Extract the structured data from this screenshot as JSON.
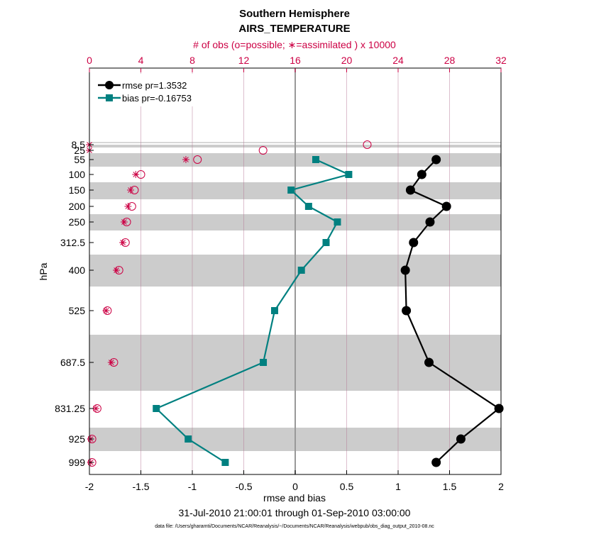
{
  "chart_data": {
    "type": "line",
    "title": "Southern Hemisphere",
    "subtitle": "AIRS_TEMPERATURE",
    "top_axis_label": "# of obs (o=possible; ∗=assimilated ) x 10000",
    "xlabel": "rmse and bias",
    "ylabel": "hPa",
    "date_range": "31-Jul-2010 21:00:01 through 01-Sep-2010 03:00:00",
    "footnote": "data file: /Users/gharamti/Documents/NCAR/Reanalysis/~/Documents/NCAR/Reanalysis/webpub/obs_diag_output_2010-08.nc",
    "xlim": [
      -2,
      2
    ],
    "x_ticks": [
      "-2",
      "-1.5",
      "-1",
      "-0.5",
      "0",
      "0.5",
      "1",
      "1.5",
      "2"
    ],
    "top_xlim": [
      0,
      32
    ],
    "top_ticks": [
      "0",
      "4",
      "8",
      "12",
      "16",
      "20",
      "24",
      "28",
      "32"
    ],
    "levels": [
      8.5,
      25,
      55,
      100,
      150,
      200,
      250,
      312.5,
      400,
      525,
      687.5,
      831.25,
      925,
      999
    ],
    "level_labels": [
      "8.5",
      "25",
      "55",
      "100",
      "150",
      "200",
      "250",
      "312.5",
      "400",
      "525",
      "687.5",
      "831.25",
      "925",
      "999"
    ],
    "series": [
      {
        "name": "rmse",
        "legend": "rmse pr=1.3532",
        "color": "#000000",
        "levels": [
          55,
          100,
          150,
          200,
          250,
          312.5,
          400,
          525,
          687.5,
          831.25,
          925,
          999
        ],
        "values": [
          1.37,
          1.23,
          1.12,
          1.47,
          1.31,
          1.15,
          1.07,
          1.08,
          1.3,
          1.98,
          1.61,
          1.37
        ]
      },
      {
        "name": "bias",
        "legend": "bias pr=-0.16753",
        "color": "#008080",
        "levels": [
          55,
          100,
          150,
          200,
          250,
          312.5,
          400,
          525,
          687.5,
          831.25,
          925,
          999
        ],
        "values": [
          0.2,
          0.52,
          -0.04,
          0.13,
          0.41,
          0.3,
          0.06,
          -0.2,
          -0.31,
          -1.35,
          -1.04,
          -0.68
        ]
      }
    ],
    "obs_possible": {
      "levels": [
        8.5,
        25,
        55,
        100,
        150,
        200,
        250,
        312.5,
        400,
        525,
        687.5,
        831.25,
        925,
        999
      ],
      "values": [
        21.6,
        13.5,
        8.4,
        4.0,
        3.5,
        3.3,
        2.9,
        2.8,
        2.3,
        1.4,
        1.9,
        0.6,
        0.2,
        0.2
      ]
    },
    "obs_assimilated": {
      "levels": [
        8.5,
        25,
        55,
        100,
        150,
        200,
        250,
        312.5,
        400,
        525,
        687.5,
        831.25,
        925,
        999
      ],
      "values": [
        0.0,
        0.0,
        7.5,
        3.6,
        3.2,
        3.0,
        2.7,
        2.6,
        2.1,
        1.3,
        1.7,
        0.5,
        0.1,
        0.1
      ]
    },
    "grid": "vertical",
    "legend_position": "top-left"
  },
  "colors": {
    "rmse": "#000000",
    "bias": "#008080",
    "obs": "#cc0044",
    "band": "#cccccc",
    "grid": "#b07090"
  }
}
